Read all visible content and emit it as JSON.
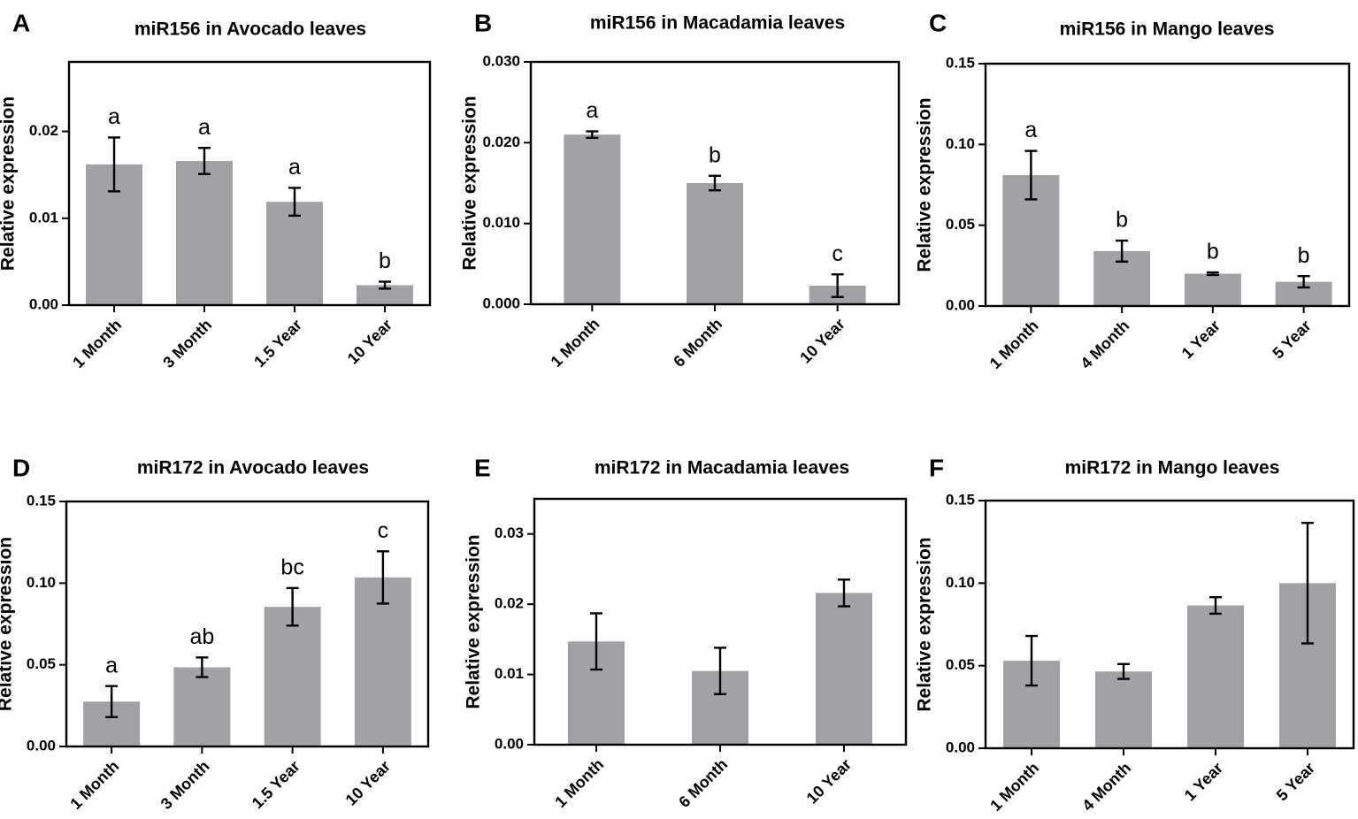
{
  "bar_color": "#a2a2a6",
  "axis_color": "#000000",
  "chart_data": [
    {
      "panel": "A",
      "type": "bar",
      "title": "miR156 in Avocado leaves",
      "ylabel": "Relative expression",
      "xlabel": "",
      "ylim": [
        0,
        0.028
      ],
      "yticks": [
        0.0,
        0.01,
        0.02
      ],
      "ytick_labels": [
        "0.00",
        "0.01",
        "0.02"
      ],
      "categories": [
        "1 Month",
        "3 Month",
        "1.5 Year",
        "10 Year"
      ],
      "values": [
        0.0162,
        0.0166,
        0.0119,
        0.0023
      ],
      "errors": [
        0.0031,
        0.0015,
        0.0016,
        0.0004
      ],
      "labels": [
        "a",
        "a",
        "a",
        "b"
      ]
    },
    {
      "panel": "B",
      "type": "bar",
      "title": "miR156 in Macadamia leaves",
      "ylabel": "Relative expression",
      "xlabel": "",
      "ylim": [
        0,
        0.03
      ],
      "yticks": [
        0.0,
        0.01,
        0.02,
        0.03
      ],
      "ytick_labels": [
        "0.000",
        "0.010",
        "0.020",
        "0.030"
      ],
      "categories": [
        "1 Month",
        "6 Month",
        "10 Year"
      ],
      "values": [
        0.021,
        0.015,
        0.0023
      ],
      "errors": [
        0.0004,
        0.0009,
        0.0014
      ],
      "labels": [
        "a",
        "b",
        "c"
      ]
    },
    {
      "panel": "C",
      "type": "bar",
      "title": "miR156 in Mango leaves",
      "ylabel": "Relative expression",
      "xlabel": "",
      "ylim": [
        0,
        0.15
      ],
      "yticks": [
        0.0,
        0.05,
        0.1,
        0.15
      ],
      "ytick_labels": [
        "0.00",
        "0.05",
        "0.10",
        "0.15"
      ],
      "categories": [
        "1 Month",
        "4 Month",
        "1 Year",
        "5 Year"
      ],
      "values": [
        0.081,
        0.034,
        0.02,
        0.015
      ],
      "errors": [
        0.015,
        0.0065,
        0.0008,
        0.0035
      ],
      "labels": [
        "a",
        "b",
        "b",
        "b"
      ]
    },
    {
      "panel": "D",
      "type": "bar",
      "title": "miR172 in Avocado leaves",
      "ylabel": "Relative expression",
      "xlabel": "",
      "ylim": [
        0,
        0.15
      ],
      "yticks": [
        0.0,
        0.05,
        0.1,
        0.15
      ],
      "ytick_labels": [
        "0.00",
        "0.05",
        "0.10",
        "0.15"
      ],
      "categories": [
        "1 Month",
        "3 Month",
        "1.5 Year",
        "10 Year"
      ],
      "values": [
        0.0275,
        0.0485,
        0.0855,
        0.1035
      ],
      "errors": [
        0.0095,
        0.006,
        0.0115,
        0.016
      ],
      "labels": [
        "a",
        "ab",
        "bc",
        "c"
      ]
    },
    {
      "panel": "E",
      "type": "bar",
      "title": "miR172 in Macadamia leaves",
      "ylabel": "Relative expression",
      "xlabel": "",
      "ylim": [
        0,
        0.035
      ],
      "yticks": [
        0.0,
        0.01,
        0.02,
        0.03
      ],
      "ytick_labels": [
        "0.00",
        "0.01",
        "0.02",
        "0.03"
      ],
      "categories": [
        "1 Month",
        "6 Month",
        "10 Year"
      ],
      "values": [
        0.0147,
        0.0105,
        0.0216
      ],
      "errors": [
        0.004,
        0.0033,
        0.0019
      ],
      "labels": [
        "",
        "",
        ""
      ]
    },
    {
      "panel": "F",
      "type": "bar",
      "title": "miR172 in Mango leaves",
      "ylabel": "Relative expression",
      "xlabel": "",
      "ylim": [
        0,
        0.15
      ],
      "yticks": [
        0.0,
        0.05,
        0.1,
        0.15
      ],
      "ytick_labels": [
        "0.00",
        "0.05",
        "0.10",
        "0.15"
      ],
      "categories": [
        "1 Month",
        "4 Month",
        "1 Year",
        "5 Year"
      ],
      "values": [
        0.053,
        0.0465,
        0.0865,
        0.1
      ],
      "errors": [
        0.015,
        0.0045,
        0.005,
        0.0365
      ],
      "labels": [
        "",
        "",
        "",
        ""
      ]
    }
  ]
}
